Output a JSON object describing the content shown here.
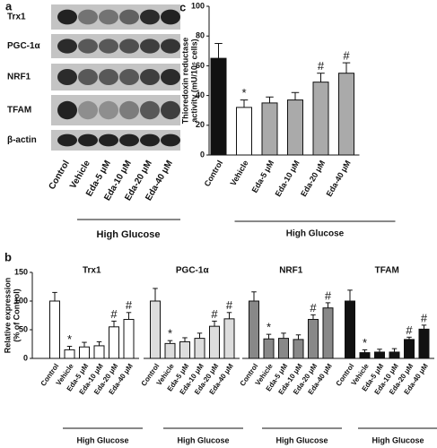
{
  "panel_a": {
    "label": "a",
    "rows": [
      "Trx1",
      "PGC-1α",
      "NRF1",
      "TFAM",
      "β-actin"
    ],
    "lanes": [
      "Control",
      "Vehicle",
      "Eda-5 μM",
      "Eda-10 μM",
      "Eda-20 μM",
      "Eda-40 μM"
    ],
    "group_label": "High Glucose"
  },
  "panel_b": {
    "label": "b",
    "ylabel": [
      "Relative expression",
      "(% of Control)"
    ]
  },
  "chart_data": [
    {
      "type": "bar",
      "panel": "c",
      "ylabel": [
        "Thioredoxin reductase",
        "activity (mU/10⁶ cells)"
      ],
      "categories": [
        "Control",
        "Vehicle",
        "Eda-5 μM",
        "Eda-10 μM",
        "Eda-20 μM",
        "Eda-40 μM"
      ],
      "values": [
        65,
        32,
        35,
        37,
        49,
        55
      ],
      "errors": [
        10,
        5,
        4,
        5,
        6,
        7
      ],
      "colors": [
        "#111111",
        "#ffffff",
        "#aaaaaa",
        "#aaaaaa",
        "#aaaaaa",
        "#aaaaaa"
      ],
      "markers": [
        null,
        "*",
        null,
        null,
        "#",
        "#"
      ],
      "group_label": "High Glucose",
      "ylim": [
        0,
        100
      ],
      "yticks": [
        0,
        20,
        40,
        60,
        80,
        100
      ]
    },
    {
      "type": "bar",
      "title": "Trx1",
      "categories": [
        "Control",
        "Vehicle",
        "Eda-5 μM",
        "Eda-10 μM",
        "Eda-20 μM",
        "Eda-40 μM"
      ],
      "values": [
        100,
        15,
        20,
        22,
        55,
        68
      ],
      "errors": [
        15,
        6,
        8,
        7,
        10,
        12
      ],
      "color": "#ffffff",
      "markers": [
        null,
        "*",
        null,
        null,
        "#",
        "#"
      ],
      "group_label": "High Glucose",
      "ylim": [
        0,
        150
      ],
      "yticks": [
        0,
        50,
        100,
        150
      ]
    },
    {
      "type": "bar",
      "title": "PGC-1α",
      "categories": [
        "Control",
        "Vehicle",
        "Eda-5 μM",
        "Eda-10 μM",
        "Eda-20 μM",
        "Eda-40 μM"
      ],
      "values": [
        100,
        26,
        29,
        35,
        56,
        69
      ],
      "errors": [
        22,
        5,
        7,
        9,
        9,
        11
      ],
      "color": "#dddddd",
      "markers": [
        null,
        "*",
        null,
        null,
        "#",
        "#"
      ],
      "group_label": "High Glucose",
      "ylim": [
        0,
        150
      ]
    },
    {
      "type": "bar",
      "title": "NRF1",
      "categories": [
        "Control",
        "Vehicle",
        "Eda-5 μM",
        "Eda-10 μM",
        "Eda-20 μM",
        "Eda-40 μM"
      ],
      "values": [
        100,
        34,
        35,
        33,
        68,
        88
      ],
      "errors": [
        16,
        8,
        9,
        8,
        8,
        9
      ],
      "color": "#888888",
      "markers": [
        null,
        "*",
        null,
        null,
        "#",
        "#"
      ],
      "group_label": "High Glucose",
      "ylim": [
        0,
        150
      ]
    },
    {
      "type": "bar",
      "title": "TFAM",
      "categories": [
        "Control",
        "Vehicle",
        "Eda-5 μM",
        "Eda-10 μM",
        "Eda-20 μM",
        "Eda-40 μM"
      ],
      "values": [
        100,
        10,
        11,
        11,
        33,
        51
      ],
      "errors": [
        19,
        5,
        5,
        6,
        4,
        7
      ],
      "color": "#111111",
      "markers": [
        null,
        "*",
        null,
        null,
        "#",
        "#"
      ],
      "group_label": "High Glucose",
      "ylim": [
        0,
        150
      ]
    }
  ]
}
